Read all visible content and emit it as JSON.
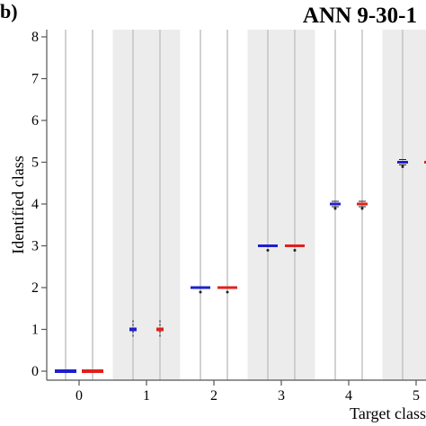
{
  "figure": {
    "panel_label": "b)",
    "title": "ANN 9-30-1"
  },
  "chart_data": {
    "type": "box",
    "title": "ANN 9-30-1",
    "xlabel": "Target class",
    "ylabel": "Identified class",
    "categories": [
      "0",
      "1",
      "2",
      "3",
      "4",
      "5"
    ],
    "ylim": [
      0,
      8
    ],
    "yticks": [
      "0",
      "1",
      "2",
      "3",
      "4",
      "5",
      "6",
      "7",
      "8"
    ],
    "grid": "vertical lines at each box position",
    "shaded_bands": [
      "1",
      "3",
      "5"
    ],
    "series": [
      {
        "color": "#1f1fd0",
        "medians": [
          0,
          1,
          2,
          3,
          4,
          5
        ]
      },
      {
        "color": "#e0201c",
        "medians": [
          0,
          1,
          2,
          3,
          4,
          5
        ]
      }
    ]
  }
}
